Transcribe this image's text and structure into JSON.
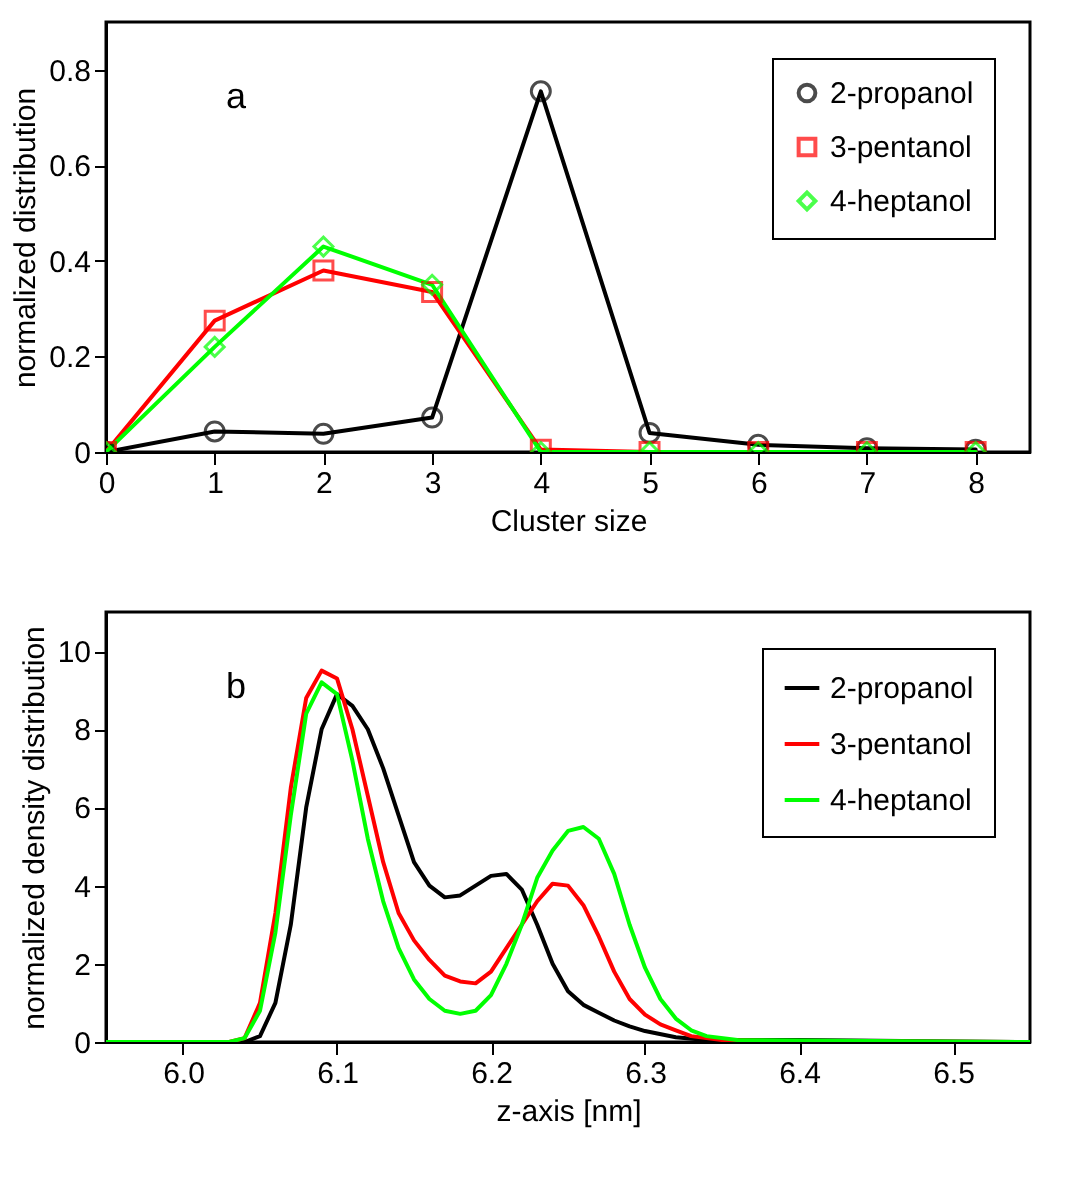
{
  "chart_data": [
    {
      "type": "line",
      "annotations": [
        "a"
      ],
      "xlabel": "Cluster size",
      "ylabel": "normalized distribution",
      "x": [
        0,
        1,
        2,
        3,
        4,
        5,
        6,
        7,
        8
      ],
      "xlim": [
        0,
        8.5
      ],
      "ylim": [
        0,
        0.9
      ],
      "xticks": [
        0,
        1,
        2,
        3,
        4,
        5,
        6,
        7,
        8
      ],
      "yticks": [
        {
          "value": 0,
          "label": "0"
        },
        0.2,
        0.4,
        0.6,
        0.8
      ],
      "grid": false,
      "legend": "top right",
      "line_style": "solid",
      "series": [
        {
          "name": "2-propanol",
          "color": "#000000",
          "marker": "circle",
          "values": [
            0,
            0.043,
            0.038,
            0.072,
            0.755,
            0.04,
            0.015,
            0.008,
            0.005
          ]
        },
        {
          "name": "3-pentanol",
          "color": "#ff0000",
          "marker": "square",
          "values": [
            0,
            0.275,
            0.38,
            0.335,
            0.005,
            0,
            0,
            0,
            0
          ]
        },
        {
          "name": "4-heptanol",
          "color": "#00ff00",
          "marker": "diamond",
          "values": [
            0,
            0.22,
            0.43,
            0.35,
            0,
            0,
            0,
            0,
            0
          ]
        }
      ]
    },
    {
      "type": "line",
      "annotations": [
        "b"
      ],
      "xlabel": "z-axis  [nm]",
      "ylabel": "normalized density distribution",
      "xlim": [
        5.95,
        6.55
      ],
      "ylim": [
        0,
        11
      ],
      "xticks": [
        {
          "value": 6,
          "label": "6.0"
        },
        6.1,
        6.2,
        6.3,
        6.4,
        6.5
      ],
      "yticks": [
        0,
        2,
        4,
        6,
        8,
        10
      ],
      "grid": false,
      "legend": "top right",
      "line_style": "solid",
      "series": [
        {
          "name": "2-propanol",
          "color": "#000000",
          "x": [
            5.95,
            6.04,
            6.05,
            6.06,
            6.07,
            6.08,
            6.09,
            6.1,
            6.11,
            6.12,
            6.13,
            6.14,
            6.15,
            6.16,
            6.17,
            6.18,
            6.19,
            6.2,
            6.21,
            6.22,
            6.23,
            6.24,
            6.25,
            6.26,
            6.27,
            6.28,
            6.29,
            6.3,
            6.32,
            6.34,
            6.4,
            6.5,
            6.55
          ],
          "values": [
            0,
            0,
            0.15,
            1.0,
            3.0,
            6.0,
            8.0,
            8.9,
            8.6,
            8.0,
            7.0,
            5.8,
            4.6,
            4.0,
            3.7,
            3.75,
            4.0,
            4.25,
            4.3,
            3.9,
            3.0,
            2.0,
            1.3,
            0.95,
            0.75,
            0.55,
            0.4,
            0.28,
            0.12,
            0.05,
            0.05,
            0.01,
            0
          ]
        },
        {
          "name": "3-pentanol",
          "color": "#ff0000",
          "x": [
            5.95,
            6.03,
            6.04,
            6.05,
            6.06,
            6.07,
            6.08,
            6.09,
            6.1,
            6.11,
            6.12,
            6.13,
            6.14,
            6.15,
            6.16,
            6.17,
            6.18,
            6.19,
            6.2,
            6.21,
            6.22,
            6.23,
            6.24,
            6.25,
            6.26,
            6.27,
            6.28,
            6.29,
            6.3,
            6.31,
            6.32,
            6.33,
            6.35,
            6.4,
            6.55
          ],
          "values": [
            0,
            0,
            0.1,
            1.0,
            3.3,
            6.5,
            8.8,
            9.5,
            9.3,
            8.0,
            6.3,
            4.6,
            3.3,
            2.6,
            2.1,
            1.7,
            1.55,
            1.5,
            1.8,
            2.4,
            3.0,
            3.6,
            4.05,
            4.0,
            3.5,
            2.7,
            1.8,
            1.1,
            0.7,
            0.45,
            0.3,
            0.15,
            0.05,
            0.02,
            0
          ]
        },
        {
          "name": "4-heptanol",
          "color": "#00ff00",
          "x": [
            5.95,
            6.03,
            6.04,
            6.05,
            6.06,
            6.07,
            6.08,
            6.09,
            6.1,
            6.11,
            6.12,
            6.13,
            6.14,
            6.15,
            6.16,
            6.17,
            6.18,
            6.19,
            6.2,
            6.21,
            6.22,
            6.23,
            6.24,
            6.25,
            6.26,
            6.27,
            6.28,
            6.29,
            6.3,
            6.31,
            6.32,
            6.33,
            6.34,
            6.36,
            6.55
          ],
          "values": [
            0,
            0,
            0.1,
            0.8,
            2.8,
            5.8,
            8.4,
            9.2,
            8.9,
            7.2,
            5.2,
            3.6,
            2.4,
            1.6,
            1.1,
            0.8,
            0.72,
            0.8,
            1.2,
            2.0,
            3.0,
            4.2,
            4.9,
            5.4,
            5.5,
            5.2,
            4.3,
            3.0,
            1.9,
            1.1,
            0.6,
            0.3,
            0.15,
            0.05,
            0
          ]
        }
      ]
    }
  ]
}
